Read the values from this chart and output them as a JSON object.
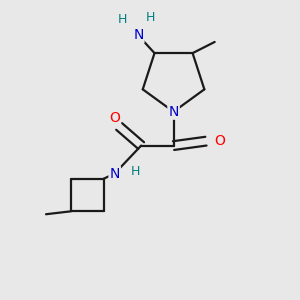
{
  "background_color": "#e8e8e8",
  "atom_colors": {
    "C": "#000000",
    "N": "#0000cd",
    "O": "#ff0000",
    "H": "#008080"
  },
  "bond_color": "#1a1a1a",
  "bond_width": 1.6,
  "font_size_atom": 10,
  "font_size_h": 9
}
